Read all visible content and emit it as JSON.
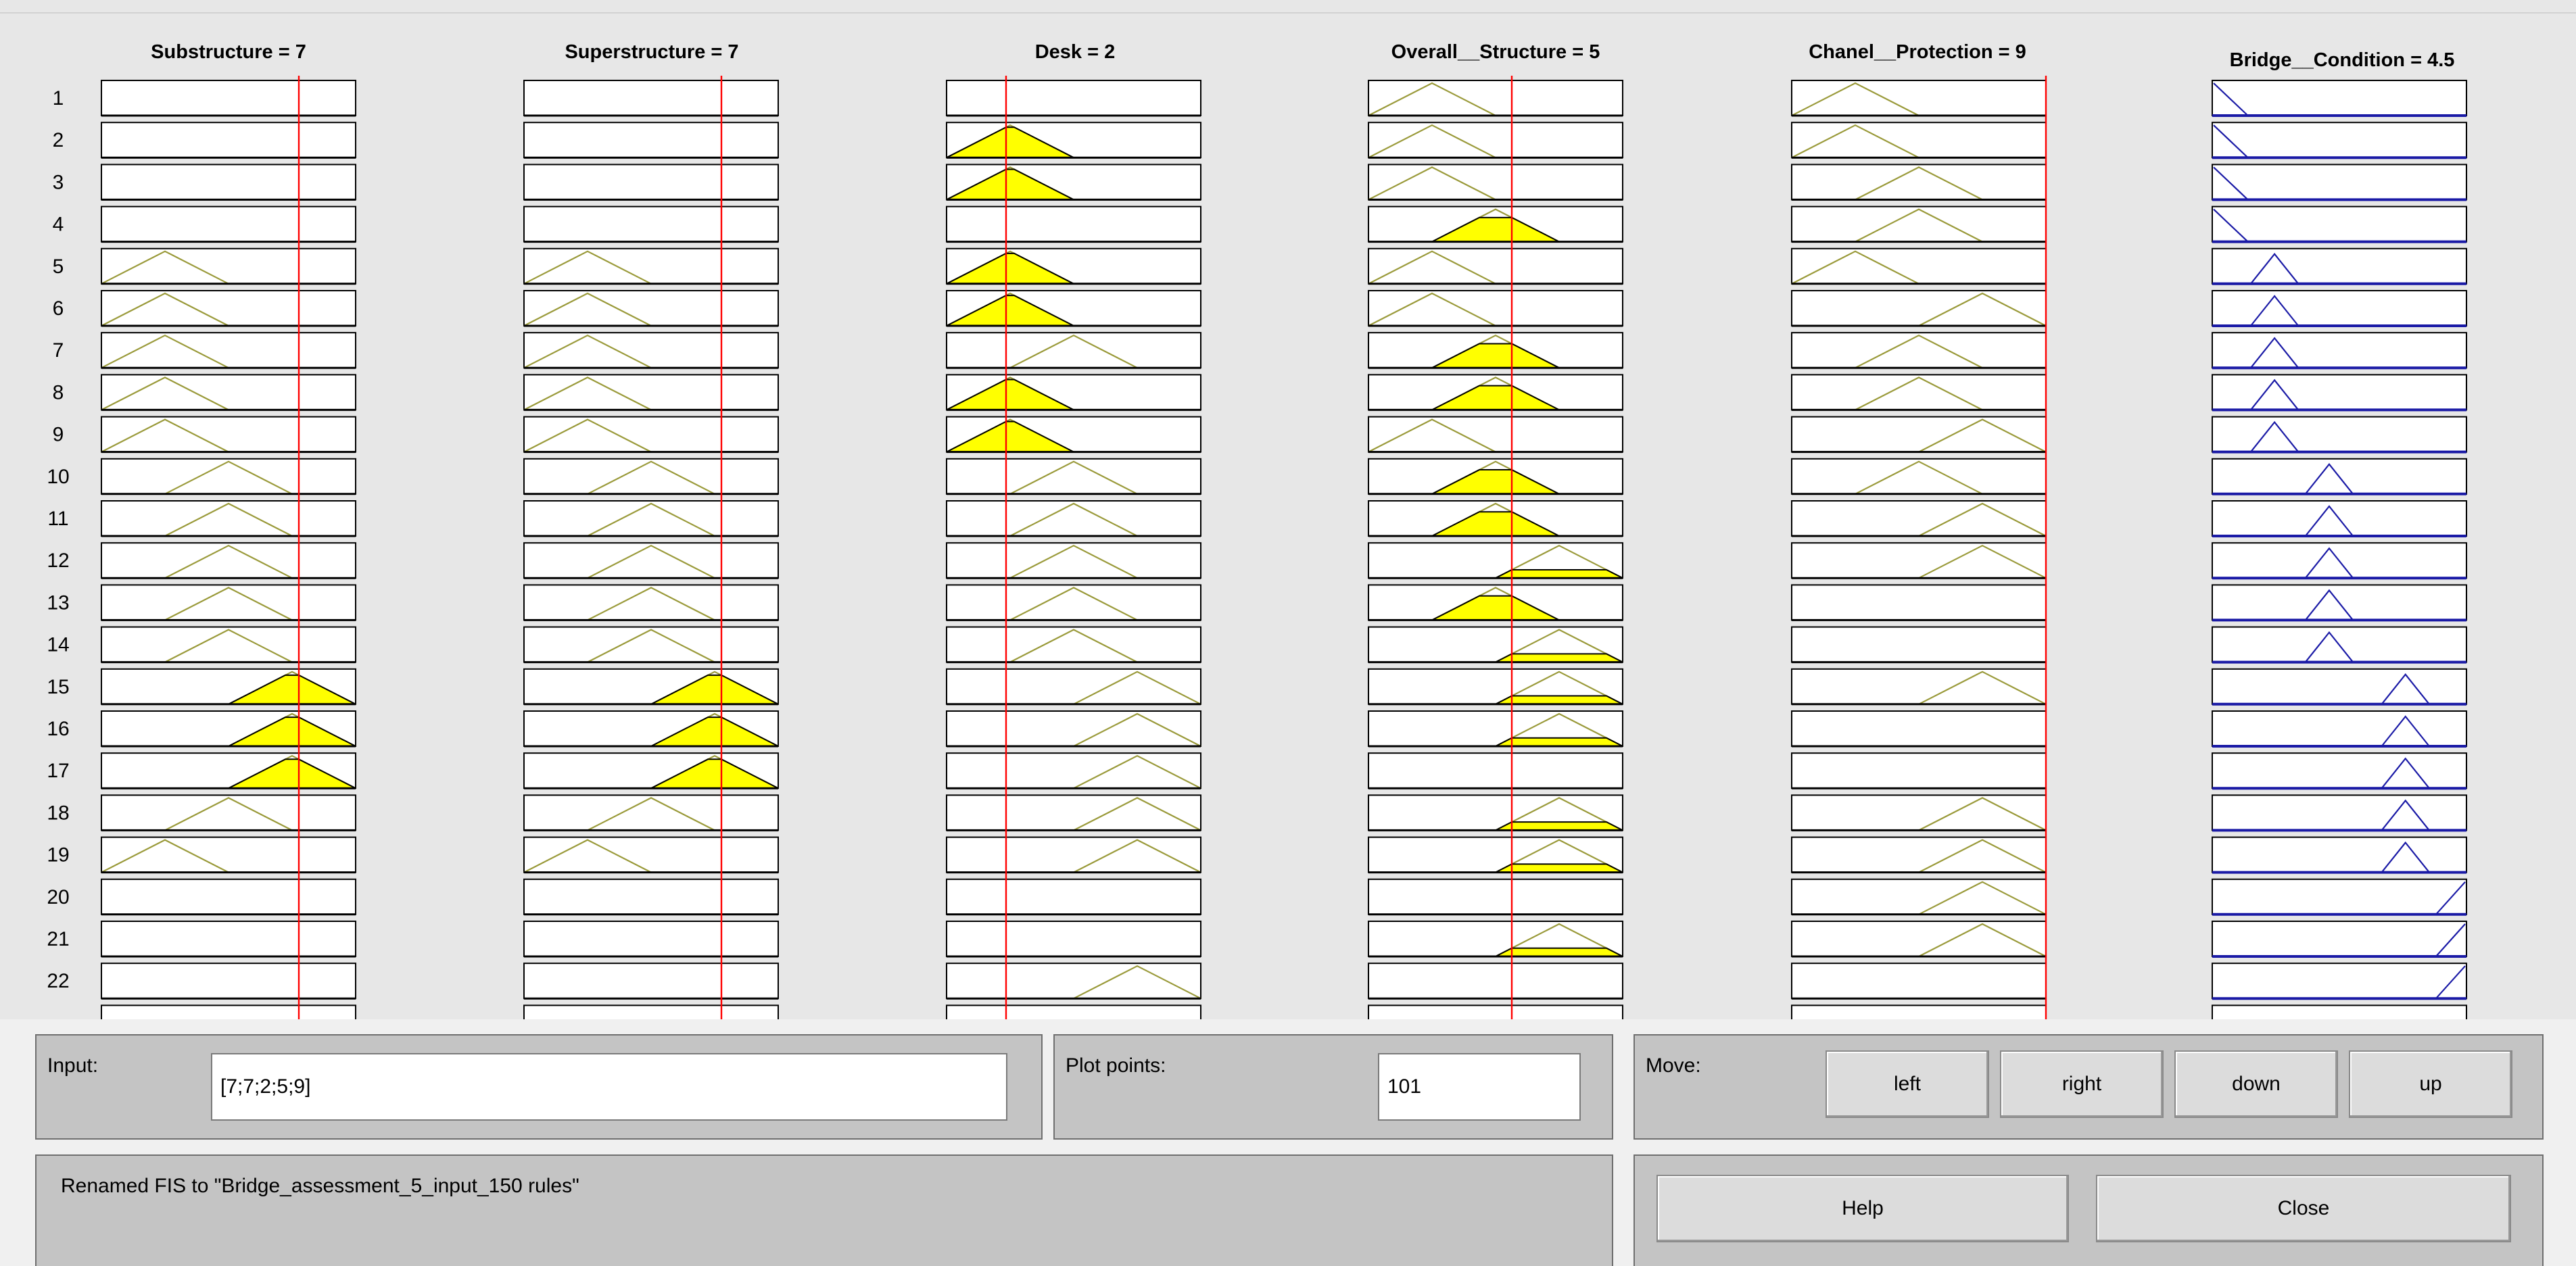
{
  "variables": [
    {
      "title": "Substructure = 7",
      "kind": "input",
      "value": 7
    },
    {
      "title": "Superstructure = 7",
      "kind": "input",
      "value": 7
    },
    {
      "title": "Desk = 2",
      "kind": "input",
      "value": 2
    },
    {
      "title": "Overall__Structure = 5",
      "kind": "input",
      "value": 5
    },
    {
      "title": "Chanel__Protection = 9",
      "kind": "input",
      "value": 9
    },
    {
      "title": "Bridge__Condition = 4.5",
      "kind": "output",
      "value": 4.5
    }
  ],
  "rules": [
    {
      "n": "1",
      "mfs": [
        null,
        null,
        null,
        1,
        1,
        1
      ]
    },
    {
      "n": "2",
      "mfs": [
        null,
        null,
        1,
        1,
        1,
        1
      ]
    },
    {
      "n": "3",
      "mfs": [
        null,
        null,
        1,
        1,
        2,
        1
      ]
    },
    {
      "n": "4",
      "mfs": [
        null,
        null,
        null,
        2,
        2,
        1
      ]
    },
    {
      "n": "5",
      "mfs": [
        1,
        1,
        1,
        1,
        1,
        2
      ]
    },
    {
      "n": "6",
      "mfs": [
        1,
        1,
        1,
        1,
        3,
        2
      ]
    },
    {
      "n": "7",
      "mfs": [
        1,
        1,
        2,
        2,
        2,
        2
      ]
    },
    {
      "n": "8",
      "mfs": [
        1,
        1,
        1,
        2,
        2,
        2
      ]
    },
    {
      "n": "9",
      "mfs": [
        1,
        1,
        1,
        1,
        3,
        2
      ]
    },
    {
      "n": "10",
      "mfs": [
        2,
        2,
        2,
        2,
        2,
        3
      ]
    },
    {
      "n": "11",
      "mfs": [
        2,
        2,
        2,
        2,
        3,
        3
      ]
    },
    {
      "n": "12",
      "mfs": [
        2,
        2,
        2,
        3,
        3,
        3
      ]
    },
    {
      "n": "13",
      "mfs": [
        2,
        2,
        2,
        2,
        null,
        3
      ]
    },
    {
      "n": "14",
      "mfs": [
        2,
        2,
        2,
        3,
        null,
        3
      ]
    },
    {
      "n": "15",
      "mfs": [
        3,
        3,
        3,
        3,
        3,
        4
      ]
    },
    {
      "n": "16",
      "mfs": [
        3,
        3,
        3,
        3,
        null,
        4
      ]
    },
    {
      "n": "17",
      "mfs": [
        3,
        3,
        3,
        null,
        null,
        4
      ]
    },
    {
      "n": "18",
      "mfs": [
        2,
        2,
        3,
        3,
        3,
        4
      ]
    },
    {
      "n": "19",
      "mfs": [
        1,
        1,
        3,
        3,
        3,
        4
      ]
    },
    {
      "n": "20",
      "mfs": [
        null,
        null,
        null,
        null,
        3,
        5
      ]
    },
    {
      "n": "21",
      "mfs": [
        null,
        null,
        null,
        3,
        3,
        5
      ]
    },
    {
      "n": "22",
      "mfs": [
        null,
        null,
        3,
        null,
        null,
        5
      ]
    }
  ],
  "input_panel": {
    "label": "Input:",
    "value": "[7;7;2;5;9]"
  },
  "plot_points": {
    "label": "Plot points:",
    "value": "101"
  },
  "move": {
    "label": "Move:",
    "left": "left",
    "right": "right",
    "down": "down",
    "up": "up"
  },
  "status_message": "Renamed FIS to \"Bridge_assessment_5_input_150 rules\"",
  "buttons": {
    "help": "Help",
    "close": "Close"
  },
  "colors": {
    "background": "#e7e7e7",
    "input_mf": "#9a9a3a",
    "output_mf": "#1a1aa6",
    "fill": "#ffff00",
    "value_line": "#ff0000"
  }
}
